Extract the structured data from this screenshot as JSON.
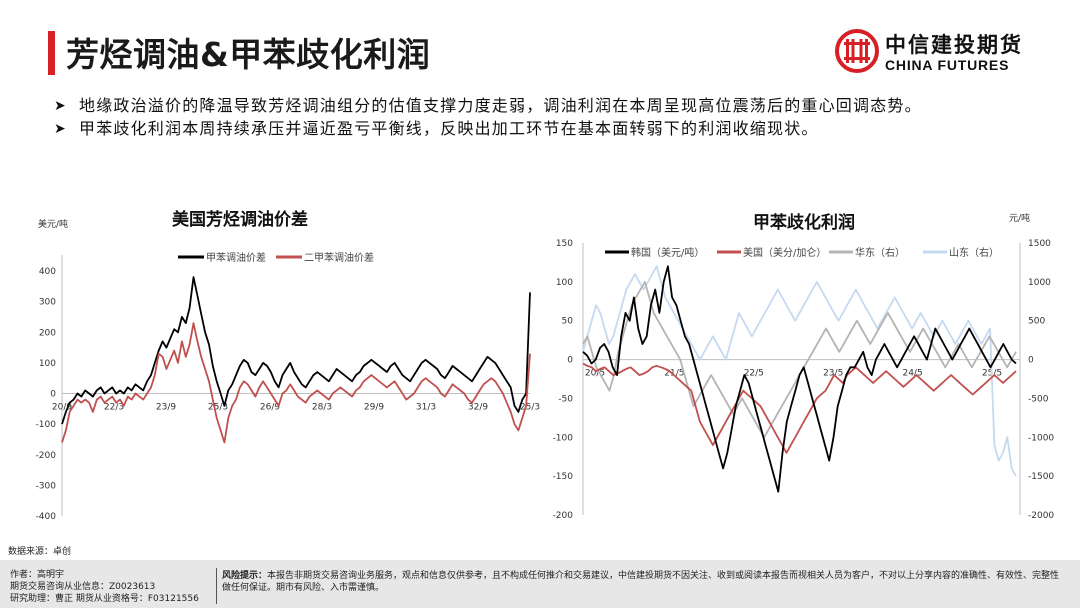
{
  "header": {
    "title": "芳烃调油&甲苯歧化利润",
    "accent_color": "#d71f26",
    "logo_cn": "中信建投期货",
    "logo_en": "CHINA FUTURES"
  },
  "bullets": [
    "地缘政治溢价的降温导致芳烃调油组分的估值支撑力度走弱，调油利润在本周呈现高位震荡后的重心回调态势。",
    "甲苯歧化利润本周持续承压并逼近盈亏平衡线，反映出加工环节在基本面转弱下的利润收缩现状。"
  ],
  "chart_data": [
    {
      "type": "line",
      "title": "美国芳烃调油价差",
      "ylabel": "美元/吨",
      "ylim": [
        -400,
        400
      ],
      "yticks": [
        400,
        300,
        200,
        100,
        0,
        -100,
        -200,
        -300,
        -400
      ],
      "xticks": [
        "20/9",
        "22/3",
        "23/9",
        "25/3",
        "26/9",
        "28/3",
        "29/9",
        "31/3",
        "32/9",
        "25/3"
      ],
      "legend": "top",
      "series": [
        {
          "name": "甲苯调油价差",
          "color": "#000000",
          "values": [
            -100,
            -60,
            -30,
            -20,
            0,
            -10,
            10,
            0,
            -10,
            10,
            20,
            0,
            10,
            20,
            0,
            10,
            0,
            20,
            10,
            30,
            20,
            10,
            40,
            60,
            100,
            140,
            170,
            150,
            180,
            210,
            200,
            250,
            230,
            280,
            380,
            320,
            260,
            200,
            160,
            90,
            40,
            0,
            -40,
            10,
            30,
            60,
            90,
            110,
            100,
            70,
            60,
            80,
            100,
            90,
            70,
            40,
            20,
            60,
            80,
            100,
            70,
            50,
            30,
            20,
            40,
            60,
            70,
            60,
            50,
            40,
            60,
            80,
            70,
            60,
            50,
            40,
            60,
            70,
            90,
            100,
            110,
            100,
            90,
            80,
            70,
            90,
            100,
            80,
            60,
            50,
            40,
            60,
            80,
            100,
            110,
            100,
            90,
            80,
            60,
            50,
            70,
            90,
            80,
            70,
            60,
            50,
            40,
            60,
            80,
            100,
            120,
            110,
            100,
            80,
            60,
            40,
            20,
            -40,
            -60,
            -20,
            0,
            330
          ]
        },
        {
          "name": "二甲苯调油价差",
          "color": "#c0504d",
          "values": [
            -160,
            -120,
            -60,
            -40,
            -20,
            -30,
            -20,
            -30,
            -60,
            -20,
            -10,
            -30,
            -20,
            -10,
            -30,
            -20,
            -40,
            -10,
            -20,
            0,
            -10,
            -20,
            0,
            20,
            60,
            130,
            120,
            80,
            110,
            140,
            100,
            170,
            120,
            160,
            230,
            170,
            120,
            80,
            40,
            -20,
            -80,
            -120,
            -160,
            -80,
            -40,
            -20,
            20,
            40,
            30,
            10,
            -10,
            20,
            40,
            20,
            0,
            -20,
            -40,
            0,
            10,
            30,
            10,
            -10,
            -20,
            -30,
            -10,
            0,
            10,
            0,
            -10,
            -20,
            0,
            10,
            20,
            10,
            0,
            -10,
            10,
            20,
            40,
            50,
            60,
            50,
            40,
            30,
            20,
            30,
            40,
            20,
            0,
            -20,
            -10,
            0,
            20,
            40,
            50,
            40,
            30,
            20,
            0,
            -10,
            10,
            30,
            20,
            10,
            0,
            -20,
            -30,
            -10,
            10,
            30,
            40,
            50,
            40,
            20,
            0,
            -30,
            -60,
            -100,
            -120,
            -80,
            -40,
            130
          ]
        }
      ]
    },
    {
      "type": "line",
      "title": "甲苯歧化利润",
      "ylabel_right": "元/吨",
      "ylim": [
        -200,
        150
      ],
      "y2lim": [
        -2000,
        1500
      ],
      "yticks": [
        150,
        100,
        50,
        0,
        -50,
        -100,
        -150,
        -200
      ],
      "y2ticks": [
        1500,
        1000,
        500,
        0,
        -500,
        -1000,
        -1500,
        -2000
      ],
      "xticks": [
        "20/5",
        "21/5",
        "22/5",
        "23/5",
        "24/5",
        "25/5"
      ],
      "legend": "top",
      "series": [
        {
          "name": "韩国（美元/吨）",
          "axis": "left",
          "color": "#000000",
          "values": [
            10,
            5,
            -5,
            0,
            15,
            20,
            10,
            -10,
            -20,
            30,
            60,
            50,
            80,
            40,
            20,
            30,
            70,
            90,
            60,
            100,
            120,
            80,
            70,
            50,
            30,
            20,
            0,
            -20,
            -40,
            -60,
            -80,
            -100,
            -120,
            -140,
            -120,
            -90,
            -60,
            -40,
            -20,
            -30,
            -50,
            -70,
            -90,
            -110,
            -130,
            -150,
            -170,
            -120,
            -80,
            -60,
            -40,
            -20,
            -10,
            -30,
            -50,
            -70,
            -90,
            -110,
            -130,
            -100,
            -60,
            -40,
            -20,
            -10,
            -10,
            0,
            10,
            -10,
            -20,
            0,
            10,
            20,
            10,
            0,
            -10,
            0,
            10,
            20,
            30,
            20,
            10,
            0,
            20,
            40,
            30,
            20,
            10,
            0,
            10,
            20,
            30,
            40,
            30,
            20,
            10,
            0,
            -10,
            0,
            10,
            20,
            10,
            0,
            -5
          ]
        },
        {
          "name": "美国（美分/加仑）",
          "axis": "left",
          "color": "#c0504d",
          "values": [
            -5,
            -8,
            -10,
            -15,
            -12,
            -10,
            -15,
            -20,
            -18,
            -15,
            -12,
            -10,
            -15,
            -20,
            -18,
            -15,
            -10,
            -8,
            -10,
            -12,
            -15,
            -20,
            -25,
            -30,
            -35,
            -40,
            -60,
            -80,
            -90,
            -100,
            -110,
            -100,
            -90,
            -80,
            -70,
            -60,
            -50,
            -40,
            -45,
            -50,
            -55,
            -60,
            -70,
            -80,
            -90,
            -100,
            -110,
            -120,
            -110,
            -100,
            -90,
            -80,
            -70,
            -60,
            -50,
            -45,
            -40,
            -30,
            -20,
            -25,
            -30,
            -20,
            -15,
            -10,
            -15,
            -20,
            -25,
            -30,
            -25,
            -20,
            -15,
            -20,
            -25,
            -30,
            -35,
            -30,
            -25,
            -20,
            -25,
            -30,
            -35,
            -40,
            -35,
            -30,
            -25,
            -20,
            -25,
            -30,
            -35,
            -40,
            -45,
            -40,
            -35,
            -30,
            -25,
            -20,
            -25,
            -30,
            -25,
            -20,
            -15
          ]
        },
        {
          "name": "华东（右）",
          "axis": "right",
          "color": "#b4b4b4",
          "values": [
            200,
            300,
            100,
            -100,
            -200,
            -300,
            -400,
            -200,
            100,
            300,
            500,
            700,
            800,
            900,
            1000,
            800,
            600,
            500,
            400,
            300,
            200,
            100,
            0,
            -200,
            -400,
            -600,
            -500,
            -400,
            -300,
            -200,
            -300,
            -400,
            -500,
            -600,
            -700,
            -600,
            -500,
            -600,
            -700,
            -800,
            -900,
            -1000,
            -900,
            -800,
            -700,
            -600,
            -500,
            -400,
            -300,
            -200,
            -100,
            0,
            100,
            200,
            300,
            400,
            300,
            200,
            100,
            200,
            300,
            400,
            500,
            400,
            300,
            200,
            300,
            400,
            500,
            600,
            500,
            400,
            300,
            200,
            100,
            200,
            300,
            400,
            300,
            200,
            100,
            0,
            -100,
            0,
            100,
            200,
            100,
            0,
            -100,
            0,
            100,
            200,
            300,
            200,
            100,
            0,
            -100,
            0,
            100
          ]
        },
        {
          "name": "山东（右）",
          "axis": "right",
          "color": "#c5d9f1",
          "values": [
            100,
            300,
            500,
            700,
            600,
            400,
            200,
            300,
            500,
            700,
            900,
            1000,
            1100,
            1000,
            900,
            1000,
            1100,
            1200,
            1000,
            800,
            700,
            600,
            500,
            400,
            300,
            200,
            100,
            0,
            100,
            200,
            300,
            200,
            100,
            0,
            200,
            400,
            600,
            500,
            400,
            300,
            400,
            500,
            600,
            700,
            800,
            900,
            800,
            700,
            600,
            500,
            600,
            700,
            800,
            900,
            1000,
            900,
            800,
            700,
            600,
            500,
            600,
            700,
            800,
            900,
            800,
            700,
            600,
            500,
            400,
            500,
            600,
            700,
            800,
            700,
            600,
            500,
            400,
            500,
            600,
            500,
            400,
            300,
            400,
            500,
            400,
            300,
            200,
            300,
            400,
            500,
            400,
            300,
            200,
            300,
            400,
            -1100,
            -1300,
            -1200,
            -1000,
            -1400,
            -1500
          ]
        }
      ]
    }
  ],
  "source": "数据来源：卓创",
  "footer": {
    "author": "作者：高明宇",
    "license": "期货交易咨询从业信息：Z0023613",
    "assistant": "研究助理：曹正  期货从业资格号：F03121556",
    "risk_label": "风险提示：",
    "risk_text": "本报告非期货交易咨询业务服务，观点和信息仅供参考，且不构成任何推介和交易建议，中信建投期货不因关注、收到或阅读本报告而视相关人员为客户，不对以上分享内容的准确性、有效性、完整性做任何保证。期市有风险、入市需谨慎。"
  }
}
